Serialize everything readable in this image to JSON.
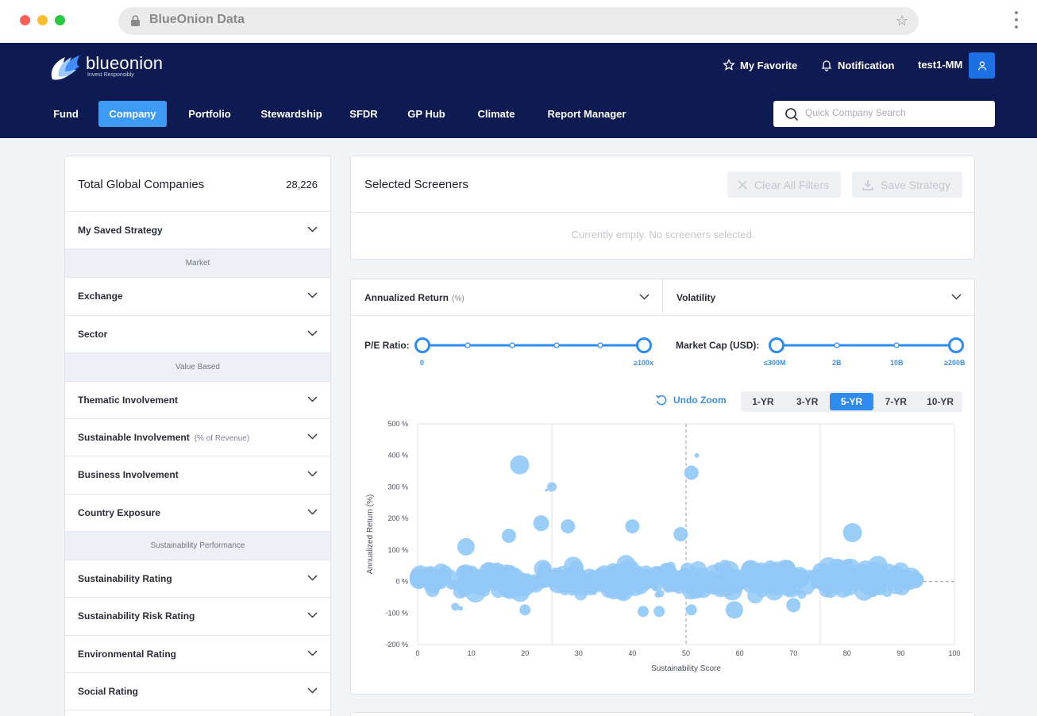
{
  "browser": {
    "url": "BlueOnion Data"
  },
  "brand": {
    "name": "blueonion",
    "tagline": "Invest Responsibly"
  },
  "topnav": {
    "favorite": "My Favorite",
    "notification": "Notification",
    "user": "test1-MM"
  },
  "tabs": [
    "Fund",
    "Company",
    "Portfolio",
    "Stewardship",
    "SFDR",
    "GP Hub",
    "Climate",
    "Report Manager"
  ],
  "active_tab": "Company",
  "search": {
    "placeholder": "Quick Company Search"
  },
  "left_panel": {
    "title": "Total Global Companies",
    "count": "28,226",
    "saved_strategy": "My Saved Strategy",
    "groups": {
      "market": "Market",
      "value_based": "Value Based",
      "sustainability_performance": "Sustainability Performance"
    },
    "items": {
      "exchange": "Exchange",
      "sector": "Sector",
      "thematic": "Thematic Involvement",
      "sustainable": "Sustainable Involvement",
      "sustainable_sub": "(% of Revenue)",
      "business": "Business Involvement",
      "country": "Country Exposure",
      "sust_rating": "Sustainability Rating",
      "sust_risk": "Sustainability Risk Rating",
      "env_rating": "Environmental Rating",
      "social_rating": "Social Rating"
    }
  },
  "screeners": {
    "title": "Selected Screeners",
    "clear_label": "Clear All Filters",
    "save_label": "Save Strategy",
    "empty_text": "Currently empty. No screeners selected."
  },
  "controls": {
    "y_metric": "Annualized Return",
    "y_metric_unit": "(%)",
    "x_metric": "Volatility",
    "pe_label": "P/E Ratio:",
    "pe_min": "0",
    "pe_max": "≥100x",
    "mcap_label": "Market Cap (USD):",
    "mcap_ticks": [
      "≤300M",
      "2B",
      "10B",
      "≥200B"
    ],
    "undo_zoom": "Undo Zoom",
    "periods": [
      "1-YR",
      "3-YR",
      "5-YR",
      "7-YR",
      "10-YR"
    ],
    "active_period": "5-YR",
    "colors": {
      "brand_navy": "#0d1b52",
      "accent": "#2f8bf0",
      "bubble": "#90c8f8"
    }
  },
  "chart_data": {
    "type": "scatter",
    "xlabel": "Sustainability Score",
    "ylabel": "Annualized Return (%)",
    "xlim": [
      0,
      100
    ],
    "ylim": [
      -200,
      500
    ],
    "xticks": [
      "0",
      "10",
      "20",
      "30",
      "40",
      "50",
      "60",
      "70",
      "80",
      "90",
      "100"
    ],
    "yticks": [
      "500 %",
      "400 %",
      "300 %",
      "200 %",
      "100 %",
      "0 %",
      "-100 %",
      "-200 %"
    ],
    "vertical_gridlines": [
      25,
      75
    ],
    "reference_lines": {
      "x": 50,
      "y": 0
    },
    "grid": true,
    "outliers": [
      {
        "x": 19,
        "y": 370,
        "size": 12
      },
      {
        "x": 25,
        "y": 300,
        "size": 6
      },
      {
        "x": 24,
        "y": 290,
        "size": 2
      },
      {
        "x": 51,
        "y": 345,
        "size": 9
      },
      {
        "x": 52,
        "y": 400,
        "size": 3
      },
      {
        "x": 81,
        "y": 155,
        "size": 12
      },
      {
        "x": 17,
        "y": 145,
        "size": 9
      },
      {
        "x": 23,
        "y": 185,
        "size": 10
      },
      {
        "x": 28,
        "y": 175,
        "size": 9
      },
      {
        "x": 40,
        "y": 175,
        "size": 9
      },
      {
        "x": 49,
        "y": 150,
        "size": 9
      },
      {
        "x": 9,
        "y": 110,
        "size": 11
      },
      {
        "x": 59,
        "y": -90,
        "size": 11
      },
      {
        "x": 70,
        "y": -75,
        "size": 9
      },
      {
        "x": 42,
        "y": -95,
        "size": 7
      },
      {
        "x": 45,
        "y": -95,
        "size": 7
      },
      {
        "x": 51,
        "y": -90,
        "size": 7
      },
      {
        "x": 20,
        "y": -90,
        "size": 7
      },
      {
        "x": 8,
        "y": -85,
        "size": 3
      },
      {
        "x": 7,
        "y": -80,
        "size": 5
      }
    ],
    "cloud": {
      "x_range": [
        0,
        93
      ],
      "y_center": 5,
      "y_spread": 60,
      "point_count": 520
    }
  }
}
